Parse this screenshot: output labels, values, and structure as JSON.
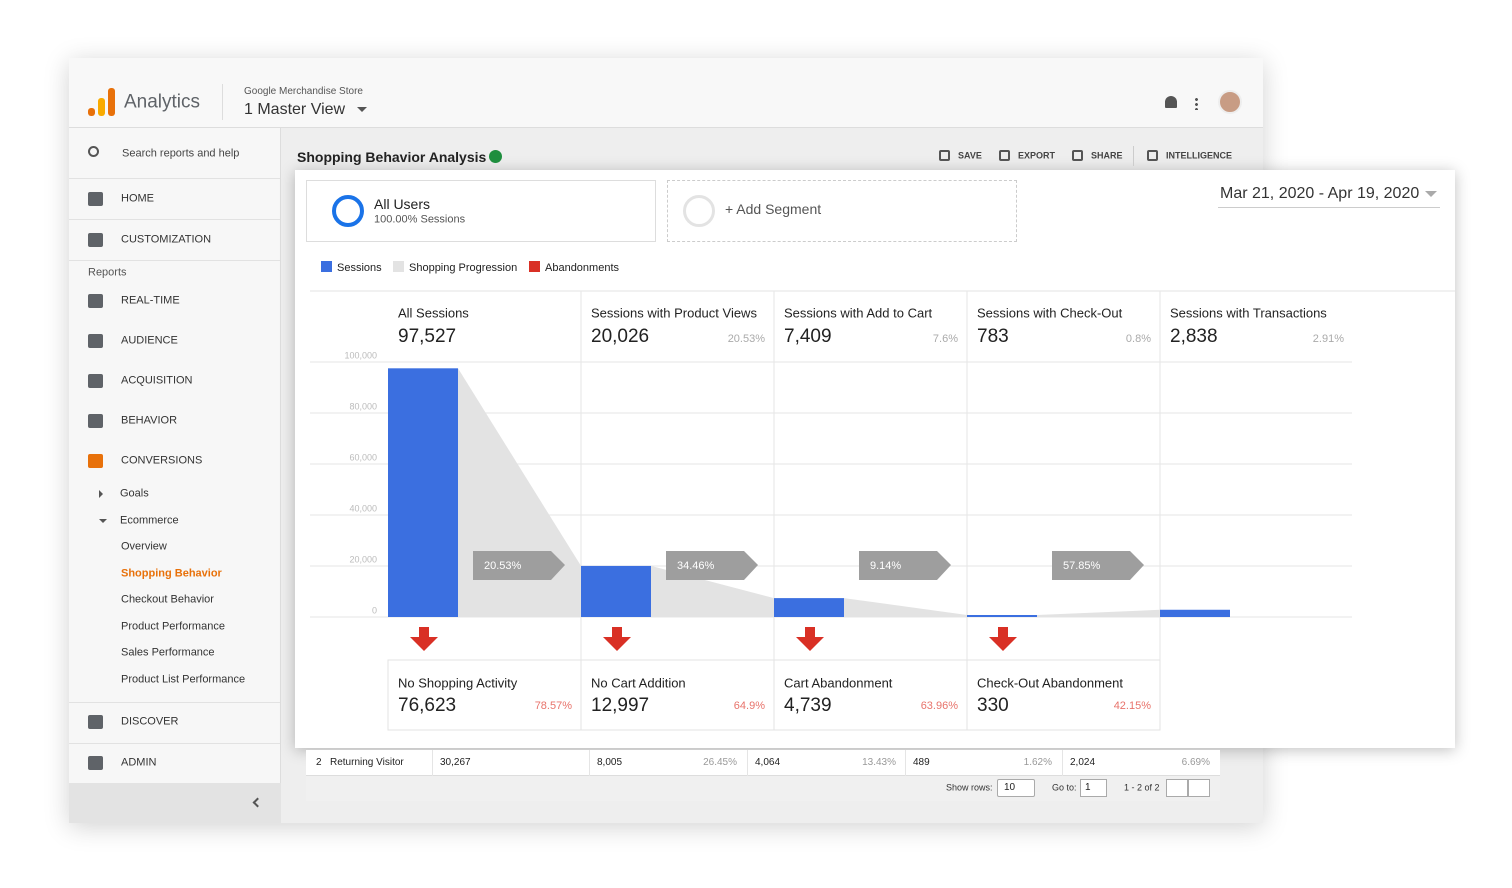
{
  "header": {
    "app": "Analytics",
    "account": "Google Merchandise Store",
    "view": "1 Master View"
  },
  "sidebar": {
    "search": "Search reports and help",
    "items": [
      "HOME",
      "CUSTOMIZATION",
      "Reports",
      "REAL-TIME",
      "AUDIENCE",
      "ACQUISITION",
      "BEHAVIOR",
      "CONVERSIONS",
      "Goals",
      "Ecommerce",
      "Overview",
      "Shopping Behavior",
      "Checkout Behavior",
      "Product Performance",
      "Sales Performance",
      "Product List Performance",
      "DISCOVER",
      "ADMIN"
    ]
  },
  "toolbar": {
    "title": "Shopping Behavior Analysis",
    "actions": [
      "SAVE",
      "EXPORT",
      "SHARE",
      "INTELLIGENCE"
    ]
  },
  "segments": [
    {
      "name": "All Users",
      "detail": "100.00% Sessions"
    },
    {
      "name": "+ Add Segment"
    }
  ],
  "date_range": "Mar 21, 2020 - Apr 19, 2020",
  "chart_data": {
    "type": "bar",
    "categories": [
      "All Sessions",
      "Sessions with Product Views",
      "Sessions with Add to Cart",
      "Sessions with Check-Out",
      "Sessions with Transactions"
    ],
    "series": [
      {
        "name": "Sessions",
        "color": "#3b6fe0",
        "values": [
          97527,
          20026,
          7409,
          783,
          2838
        ],
        "value_labels": [
          "97,527",
          "20,026",
          "7,409",
          "783",
          "2,838"
        ],
        "rates": [
          null,
          20.53,
          7.6,
          0.8,
          2.91
        ],
        "rate_labels": [
          null,
          "20.53%",
          "7.6%",
          "0.8%",
          "2.91%"
        ]
      },
      {
        "name": "Shopping Progression",
        "color": "#e3e3e3",
        "values": [
          20.53,
          34.46,
          9.14,
          57.85,
          null
        ],
        "value_labels": [
          "20.53%",
          "34.46%",
          "9.14%",
          "57.85%",
          null
        ]
      },
      {
        "name": "Abandonments",
        "color": "#d93025",
        "categories": [
          "No Shopping Activity",
          "No Cart Addition",
          "Cart Abandonment",
          "Check-Out Abandonment",
          null
        ],
        "values": [
          76623,
          12997,
          4739,
          330,
          null
        ],
        "value_labels": [
          "76,623",
          "12,997",
          "4,739",
          "330",
          null
        ],
        "rates": [
          78.57,
          64.9,
          63.96,
          42.15,
          null
        ],
        "rate_labels": [
          "78.57%",
          "64.9%",
          "63.96%",
          "42.15%",
          null
        ]
      }
    ],
    "ylim": [
      0,
      100000
    ],
    "yticks": [
      0,
      {
        "value": 20000,
        "label": "20,000"
      },
      {
        "value": 40000,
        "label": "40,000"
      },
      {
        "value": 60000,
        "label": "60,000"
      },
      {
        "value": 80000,
        "label": "80,000"
      },
      {
        "value": 100000,
        "label": "100,000"
      }
    ],
    "grid": true
  },
  "table": {
    "rows": [
      [
        "2",
        "Returning Visitor",
        "30,267",
        "8,005",
        "26.45%",
        "4,064",
        "13.43%",
        "489",
        "1.62%",
        "2,024",
        "6.69%"
      ]
    ]
  },
  "pagination": {
    "show_rows": "Show rows:",
    "rows": "10",
    "go_to": "Go to:",
    "page": "1",
    "range": "1 - 2 of 2"
  }
}
